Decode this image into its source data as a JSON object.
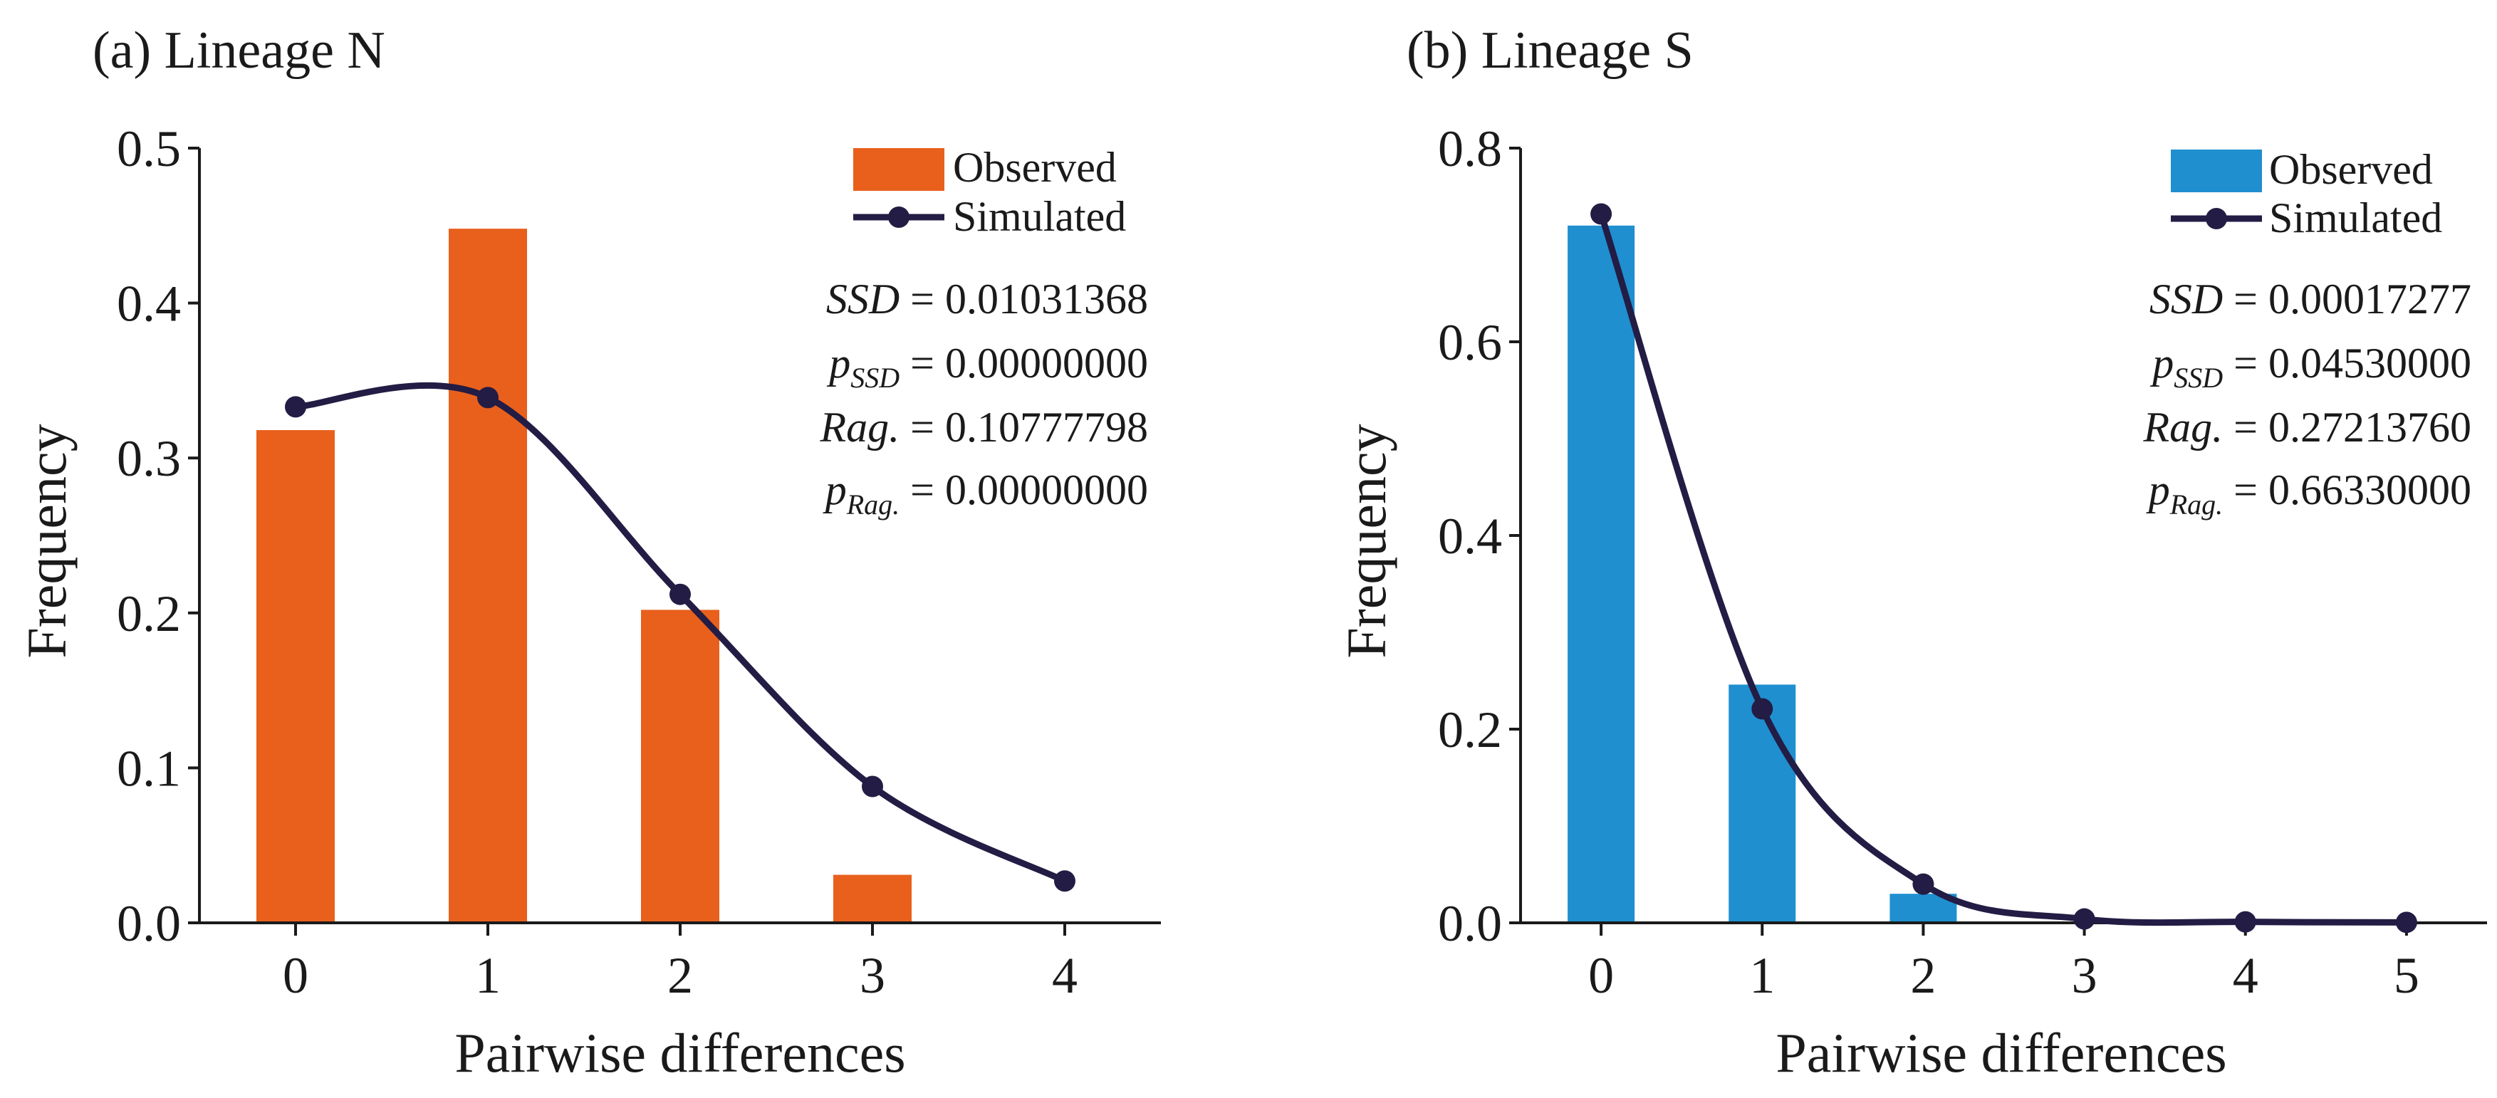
{
  "chart_data": [
    {
      "type": "bar",
      "panel_label": "(a) Lineage N",
      "xlabel": "Pairwise differences",
      "ylabel": "Frequency",
      "x_ticks": [
        "0",
        "1",
        "2",
        "3",
        "4"
      ],
      "y_ticks": [
        "0.0",
        "0.1",
        "0.2",
        "0.3",
        "0.4",
        "0.5"
      ],
      "xlim": [
        -0.5,
        4.5
      ],
      "ylim": [
        0,
        0.5
      ],
      "bar_color": "#e8601c",
      "line_color": "#231c44",
      "series": [
        {
          "name": "Observed",
          "kind": "bar",
          "x": [
            0,
            1,
            2,
            3
          ],
          "values": [
            0.318,
            0.448,
            0.202,
            0.031
          ]
        },
        {
          "name": "Simulated",
          "kind": "line",
          "x": [
            0,
            1,
            2,
            3,
            4
          ],
          "values": [
            0.333,
            0.339,
            0.212,
            0.088,
            0.027
          ]
        }
      ],
      "legend": {
        "observed": "Observed",
        "simulated": "Simulated"
      },
      "stats": {
        "ssd_label": "SSD",
        "ssd_value": "= 0.01031368",
        "pssd_p": "p",
        "pssd_sub": "SSD",
        "pssd_value": "= 0.00000000",
        "rag_label": "Rag.",
        "rag_value": "= 0.10777798",
        "prag_p": "p",
        "prag_sub": "Rag.",
        "prag_value": "= 0.00000000"
      }
    },
    {
      "type": "bar",
      "panel_label": "(b) Lineage S",
      "xlabel": "Pairwise differences",
      "ylabel": "Frequency",
      "x_ticks": [
        "0",
        "1",
        "2",
        "3",
        "4",
        "5"
      ],
      "y_ticks": [
        "0.0",
        "0.2",
        "0.4",
        "0.6",
        "0.8"
      ],
      "xlim": [
        -0.5,
        5.5
      ],
      "ylim": [
        0,
        0.8
      ],
      "bar_color": "#1f8fd0",
      "line_color": "#231c44",
      "series": [
        {
          "name": "Observed",
          "kind": "bar",
          "x": [
            0,
            1,
            2
          ],
          "values": [
            0.72,
            0.246,
            0.03
          ]
        },
        {
          "name": "Simulated",
          "kind": "line",
          "x": [
            0,
            1,
            2,
            3,
            4,
            5
          ],
          "values": [
            0.732,
            0.221,
            0.04,
            0.004,
            0.001,
            0.0005
          ]
        }
      ],
      "legend": {
        "observed": "Observed",
        "simulated": "Simulated"
      },
      "stats": {
        "ssd_label": "SSD",
        "ssd_value": "= 0.00017277",
        "pssd_p": "p",
        "pssd_sub": "SSD",
        "pssd_value": "= 0.04530000",
        "rag_label": "Rag.",
        "rag_value": "= 0.27213760",
        "prag_p": "p",
        "prag_sub": "Rag.",
        "prag_value": "= 0.66330000"
      }
    }
  ]
}
